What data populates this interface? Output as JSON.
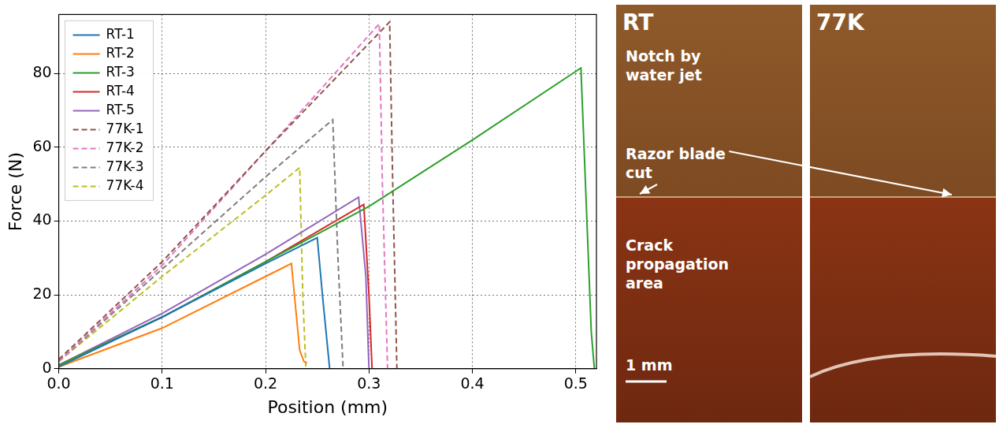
{
  "chart_data": {
    "type": "line",
    "x_label": "Position (mm)",
    "y_label": "Force (N)",
    "xlim": [
      0,
      0.52
    ],
    "ylim": [
      0,
      96
    ],
    "xticks": [
      {
        "value": 0,
        "label": "0.0"
      },
      {
        "value": 0.1,
        "label": "0.1"
      },
      {
        "value": 0.2,
        "label": "0.2"
      },
      {
        "value": 0.3,
        "label": "0.3"
      },
      {
        "value": 0.4,
        "label": "0.4"
      },
      {
        "value": 0.5,
        "label": "0.5"
      }
    ],
    "yticks": [
      0,
      20,
      40,
      60,
      80
    ],
    "grid": true,
    "legend": "upper left",
    "series": [
      {
        "name": "RT-1",
        "color": "#1f77b4",
        "line_style": "solid",
        "x": [
          0,
          0.1,
          0.2,
          0.25,
          0.255,
          0.262
        ],
        "values": [
          0.5,
          14,
          28.5,
          35.5,
          20,
          0
        ]
      },
      {
        "name": "RT-2",
        "color": "#ff7f0e",
        "line_style": "solid",
        "x": [
          0,
          0.1,
          0.2,
          0.225,
          0.233,
          0.237,
          0.24
        ],
        "values": [
          0.5,
          11,
          25,
          28.5,
          5,
          2,
          1.5
        ]
      },
      {
        "name": "RT-3",
        "color": "#2ca02c",
        "line_style": "solid",
        "x": [
          0,
          0.1,
          0.2,
          0.3,
          0.4,
          0.505,
          0.515,
          0.518
        ],
        "values": [
          1,
          14,
          29,
          44,
          62,
          81.5,
          10,
          0
        ]
      },
      {
        "name": "RT-4",
        "color": "#d62728",
        "line_style": "solid",
        "x": [
          0,
          0.1,
          0.2,
          0.295,
          0.3,
          0.303
        ],
        "values": [
          1,
          14,
          29,
          44.5,
          20,
          0
        ]
      },
      {
        "name": "RT-5",
        "color": "#9467bd",
        "line_style": "solid",
        "x": [
          0,
          0.1,
          0.2,
          0.29,
          0.297,
          0.3
        ],
        "values": [
          1,
          15,
          31,
          46.5,
          25,
          0
        ]
      },
      {
        "name": "77K-1",
        "color": "#8c564b",
        "line_style": "dashed",
        "x": [
          0,
          0.1,
          0.2,
          0.32,
          0.323,
          0.327
        ],
        "values": [
          2.5,
          29,
          59,
          94,
          50,
          0
        ]
      },
      {
        "name": "77K-2",
        "color": "#e377c2",
        "line_style": "dashed",
        "x": [
          0,
          0.1,
          0.2,
          0.31,
          0.313,
          0.318
        ],
        "values": [
          2,
          28,
          59,
          93.5,
          50,
          0
        ]
      },
      {
        "name": "77K-3",
        "color": "#7f7f7f",
        "line_style": "dashed",
        "x": [
          0,
          0.1,
          0.2,
          0.265,
          0.27,
          0.275
        ],
        "values": [
          2,
          27,
          52,
          67.5,
          30,
          0
        ]
      },
      {
        "name": "77K-4",
        "color": "#bcbd22",
        "line_style": "dashed",
        "x": [
          0,
          0.1,
          0.2,
          0.233,
          0.236,
          0.239
        ],
        "values": [
          2,
          25,
          47,
          54.5,
          20,
          0
        ]
      }
    ]
  },
  "photos": {
    "panels": [
      {
        "title": "RT"
      },
      {
        "title": "77K"
      }
    ],
    "annotations": [
      "Notch by water jet",
      "Razor blade cut",
      "Crack propagation area"
    ],
    "scale_bar": "1 mm"
  }
}
